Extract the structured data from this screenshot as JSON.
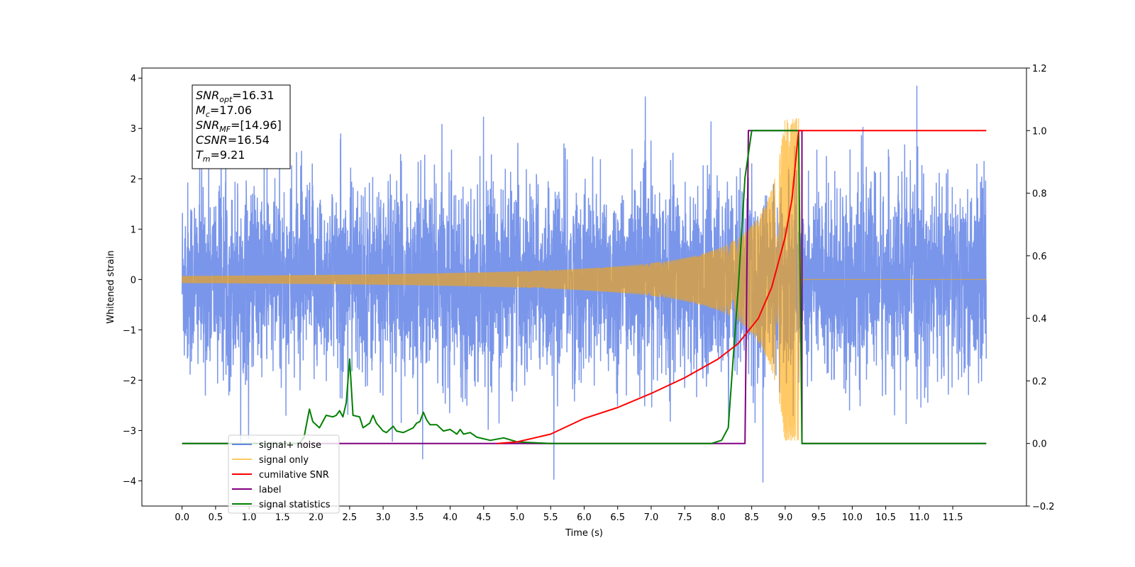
{
  "chart_data": {
    "type": "line",
    "xlabel": "Time (s)",
    "ylabel_left": "Whitened strain",
    "xlim": [
      -0.6,
      12.6
    ],
    "ylim_left": [
      -4.5,
      4.2
    ],
    "ylim_right": [
      -0.2,
      1.2
    ],
    "x_ticks": [
      "0.0",
      "0.5",
      "1.0",
      "1.5",
      "2.0",
      "2.5",
      "3.0",
      "3.5",
      "4.0",
      "4.5",
      "5.0",
      "5.5",
      "6.0",
      "6.5",
      "7.0",
      "7.5",
      "8.0",
      "8.5",
      "9.0",
      "9.5",
      "10.0",
      "10.5",
      "11.0",
      "11.5"
    ],
    "y_ticks_left": [
      "4",
      "3",
      "2",
      "1",
      "0",
      "−1",
      "−2",
      "−3",
      "−4"
    ],
    "y_ticks_right": [
      "1.2",
      "1.0",
      "0.8",
      "0.6",
      "0.4",
      "0.2",
      "0.0",
      "−0.2"
    ],
    "grid": false,
    "legend_position": "lower-left",
    "annotation": {
      "lines": [
        {
          "symbol": "SNR",
          "sub": "opt",
          "value": "=16.31"
        },
        {
          "symbol": "M",
          "sub": "c",
          "value": "=17.06"
        },
        {
          "symbol": "SNR",
          "sub": "MF",
          "value": "=[14.96]"
        },
        {
          "symbol": "CSNR",
          "sub": "",
          "value": "=16.54"
        },
        {
          "symbol": "T",
          "sub": "m",
          "value": "=9.21"
        }
      ]
    },
    "series": [
      {
        "name": "signal+ noise",
        "axis": "left",
        "color": "#4169e1",
        "description": "noise-dominated trace, std about 1.0, spikes up to about 3.8, sampled 0 to 12 s",
        "x_range": [
          0.0,
          12.0
        ],
        "noise_std": 1.0
      },
      {
        "name": "signal only",
        "axis": "left",
        "color": "#ffa500",
        "description": "chirp, near-zero until about 5.5 s, amplitude growing to about 3 at merger 9.2 s, zero afterwards",
        "x_range": [
          0.0,
          12.0
        ],
        "merger_time": 9.2,
        "peak_amplitude": 3.2
      },
      {
        "name": "cumilative SNR",
        "axis": "right",
        "color": "#ff0000",
        "points": [
          [
            4.7,
            0.0
          ],
          [
            5.0,
            0.005
          ],
          [
            5.5,
            0.03
          ],
          [
            6.0,
            0.08
          ],
          [
            6.5,
            0.115
          ],
          [
            7.0,
            0.16
          ],
          [
            7.5,
            0.21
          ],
          [
            8.0,
            0.27
          ],
          [
            8.3,
            0.32
          ],
          [
            8.6,
            0.4
          ],
          [
            8.8,
            0.5
          ],
          [
            9.0,
            0.66
          ],
          [
            9.1,
            0.78
          ],
          [
            9.2,
            1.0
          ],
          [
            12.0,
            1.0
          ]
        ]
      },
      {
        "name": "label",
        "axis": "right",
        "color": "#800080",
        "points": [
          [
            0.0,
            0.0
          ],
          [
            8.4,
            0.0
          ],
          [
            8.45,
            1.0
          ],
          [
            9.25,
            1.0
          ],
          [
            9.25,
            0.0
          ],
          [
            12.0,
            0.0
          ]
        ]
      },
      {
        "name": "signal statistics",
        "axis": "right",
        "color": "#008000",
        "points": [
          [
            0.0,
            0.0
          ],
          [
            1.75,
            0.0
          ],
          [
            1.82,
            0.02
          ],
          [
            1.9,
            0.11
          ],
          [
            1.95,
            0.07
          ],
          [
            2.05,
            0.05
          ],
          [
            2.15,
            0.09
          ],
          [
            2.25,
            0.085
          ],
          [
            2.3,
            0.09
          ],
          [
            2.35,
            0.105
          ],
          [
            2.4,
            0.085
          ],
          [
            2.45,
            0.13
          ],
          [
            2.5,
            0.27
          ],
          [
            2.55,
            0.09
          ],
          [
            2.65,
            0.085
          ],
          [
            2.7,
            0.05
          ],
          [
            2.8,
            0.065
          ],
          [
            2.85,
            0.09
          ],
          [
            2.9,
            0.065
          ],
          [
            3.0,
            0.04
          ],
          [
            3.05,
            0.035
          ],
          [
            3.15,
            0.055
          ],
          [
            3.2,
            0.04
          ],
          [
            3.3,
            0.035
          ],
          [
            3.35,
            0.04
          ],
          [
            3.45,
            0.05
          ],
          [
            3.5,
            0.065
          ],
          [
            3.55,
            0.07
          ],
          [
            3.6,
            0.1
          ],
          [
            3.65,
            0.075
          ],
          [
            3.7,
            0.06
          ],
          [
            3.8,
            0.06
          ],
          [
            3.9,
            0.04
          ],
          [
            4.0,
            0.045
          ],
          [
            4.1,
            0.03
          ],
          [
            4.15,
            0.045
          ],
          [
            4.2,
            0.03
          ],
          [
            4.3,
            0.035
          ],
          [
            4.4,
            0.02
          ],
          [
            4.6,
            0.01
          ],
          [
            4.8,
            0.018
          ],
          [
            5.0,
            0.005
          ],
          [
            5.5,
            0.0
          ],
          [
            7.9,
            0.0
          ],
          [
            8.05,
            0.01
          ],
          [
            8.15,
            0.05
          ],
          [
            8.2,
            0.2
          ],
          [
            8.3,
            0.5
          ],
          [
            8.4,
            0.85
          ],
          [
            8.5,
            1.0
          ],
          [
            9.2,
            1.0
          ],
          [
            9.25,
            0.0
          ],
          [
            12.0,
            0.0
          ]
        ]
      }
    ]
  }
}
